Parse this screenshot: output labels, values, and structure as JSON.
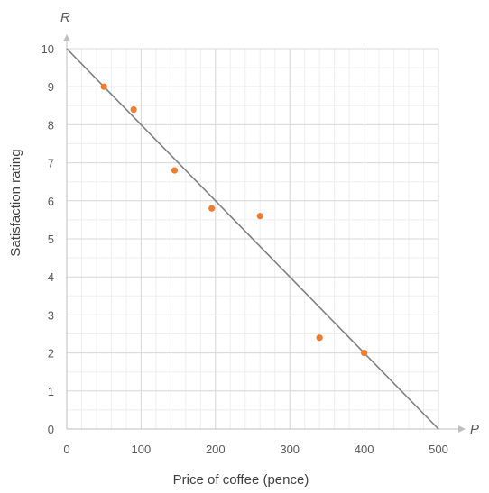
{
  "chart_data": {
    "type": "scatter",
    "xlabel": "Price of coffee (pence)",
    "ylabel": "Satisfaction rating",
    "x_axis_letter": "P",
    "y_axis_letter": "R",
    "xlim": [
      0,
      500
    ],
    "ylim": [
      0,
      10
    ],
    "xticks": [
      0,
      100,
      200,
      300,
      400,
      500
    ],
    "yticks": [
      0,
      1,
      2,
      3,
      4,
      5,
      6,
      7,
      8,
      9,
      10
    ],
    "x_minor_step": 20,
    "y_minor_step": 0.5,
    "grid": true,
    "points": [
      {
        "x": 50,
        "y": 9.0
      },
      {
        "x": 90,
        "y": 8.4
      },
      {
        "x": 145,
        "y": 6.8
      },
      {
        "x": 195,
        "y": 5.8
      },
      {
        "x": 260,
        "y": 5.6
      },
      {
        "x": 340,
        "y": 2.4
      },
      {
        "x": 400,
        "y": 2.0
      }
    ],
    "line": {
      "x1": 0,
      "y1": 10,
      "x2": 500,
      "y2": 0
    },
    "colors": {
      "points": "#ed7d31",
      "line": "#7f7f7f",
      "grid_major": "#d9d9d9",
      "grid_minor": "#eeeeee",
      "axis": "#bfbfbf"
    }
  }
}
